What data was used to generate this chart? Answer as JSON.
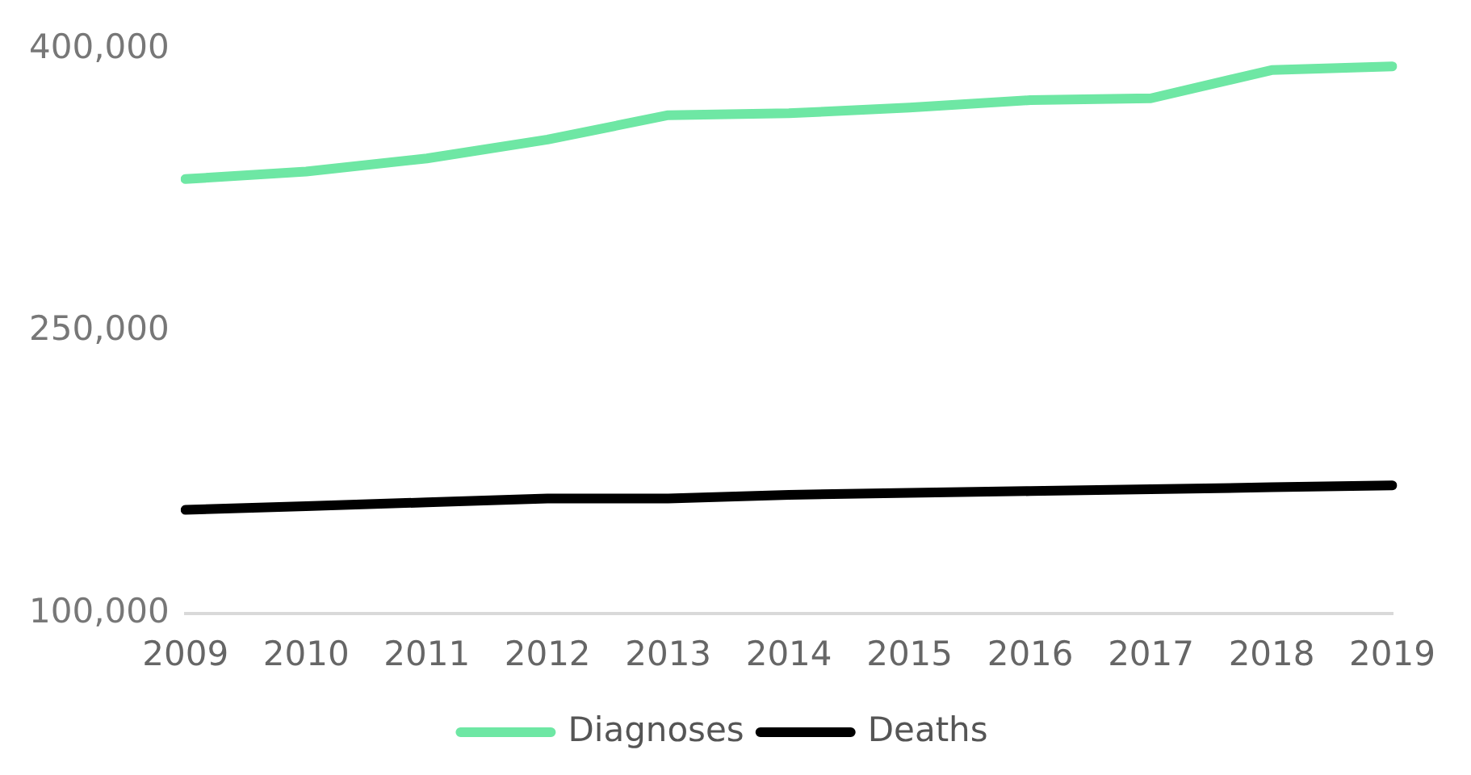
{
  "chart_data": {
    "type": "line",
    "categories": [
      "2009",
      "2010",
      "2011",
      "2012",
      "2013",
      "2014",
      "2015",
      "2016",
      "2017",
      "2018",
      "2019"
    ],
    "series": [
      {
        "name": "Diagnoses",
        "color": "#6ee7a4",
        "values": [
          331000,
          335000,
          342000,
          352000,
          365000,
          366000,
          369000,
          373000,
          374000,
          389000,
          391000
        ]
      },
      {
        "name": "Deaths",
        "color": "#000000",
        "values": [
          155000,
          157000,
          159000,
          161000,
          161000,
          163000,
          164000,
          165000,
          166000,
          167000,
          168000
        ]
      }
    ],
    "ylim": [
      100000,
      400000
    ],
    "yticks": [
      {
        "value": 100000,
        "label": "100,000"
      },
      {
        "value": 250000,
        "label": "250,000"
      },
      {
        "value": 400000,
        "label": "400,000"
      }
    ],
    "grid": false,
    "legend": "bottom",
    "marker": "none",
    "line_style": "solid"
  }
}
